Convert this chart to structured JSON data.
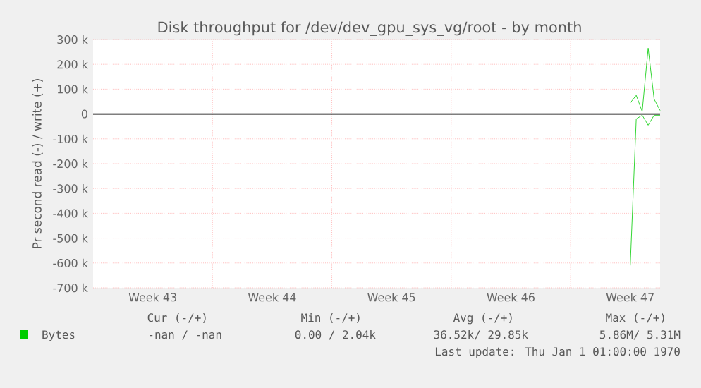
{
  "chart_data": {
    "type": "line",
    "title": "Disk throughput for /dev/dev_gpu_sys_vg/root - by month",
    "ylabel": "Pr second read (-) / write (+)",
    "categories": [
      null,
      null,
      null,
      null,
      null,
      null,
      null,
      null,
      null,
      null,
      "Week 43",
      null,
      null,
      null,
      null,
      null,
      null,
      null,
      null,
      null,
      null,
      null,
      null,
      null,
      null,
      null,
      null,
      null,
      null,
      null,
      "Week 44",
      null,
      null,
      null,
      null,
      null,
      null,
      null,
      null,
      null,
      null,
      null,
      null,
      null,
      null,
      null,
      null,
      null,
      null,
      null,
      "Week 45",
      null,
      null,
      null,
      null,
      null,
      null,
      null,
      null,
      null,
      null,
      null,
      null,
      null,
      null,
      null,
      null,
      null,
      null,
      null,
      "Week 46",
      null,
      null,
      null,
      null,
      null,
      null,
      null,
      null,
      null,
      null,
      null,
      null,
      null,
      null,
      null,
      null,
      null,
      null,
      null,
      "Week 47",
      null,
      null,
      null,
      null,
      null
    ],
    "ylim": [
      -700000,
      300000
    ],
    "yticks": [
      {
        "value": -700000,
        "label": "-700 k"
      },
      {
        "value": -600000,
        "label": "-600 k"
      },
      {
        "value": -500000,
        "label": "-500 k"
      },
      {
        "value": -400000,
        "label": "-400 k"
      },
      {
        "value": -300000,
        "label": "-300 k"
      },
      {
        "value": -200000,
        "label": "-200 k"
      },
      {
        "value": -100000,
        "label": "-100 k"
      },
      0,
      {
        "value": 100000,
        "label": "100 k"
      },
      {
        "value": 200000,
        "label": "200 k"
      },
      {
        "value": 300000,
        "label": "300 k"
      }
    ],
    "grid": true,
    "legend": "bottom",
    "series": [
      {
        "name": "Bytes",
        "color": "#00cc00",
        "values": [
          null,
          null,
          null,
          null,
          null,
          null,
          null,
          null,
          null,
          null,
          null,
          null,
          null,
          null,
          null,
          null,
          null,
          null,
          null,
          null,
          null,
          null,
          null,
          null,
          null,
          null,
          null,
          null,
          null,
          null,
          null,
          null,
          null,
          null,
          null,
          null,
          null,
          null,
          null,
          null,
          null,
          null,
          null,
          null,
          null,
          null,
          null,
          null,
          null,
          null,
          null,
          null,
          null,
          null,
          null,
          null,
          null,
          null,
          null,
          null,
          null,
          null,
          null,
          null,
          null,
          null,
          null,
          null,
          null,
          null,
          null,
          null,
          null,
          null,
          null,
          null,
          null,
          null,
          null,
          null,
          null,
          null,
          null,
          null,
          null,
          null,
          null,
          null,
          null,
          null,
          45000,
          75000,
          10000,
          265000,
          60000,
          14000
        ]
      },
      {
        "color": "#00cc00",
        "values": [
          null,
          null,
          null,
          null,
          null,
          null,
          null,
          null,
          null,
          null,
          null,
          null,
          null,
          null,
          null,
          null,
          null,
          null,
          null,
          null,
          null,
          null,
          null,
          null,
          null,
          null,
          null,
          null,
          null,
          null,
          null,
          null,
          null,
          null,
          null,
          null,
          null,
          null,
          null,
          null,
          null,
          null,
          null,
          null,
          null,
          null,
          null,
          null,
          null,
          null,
          null,
          null,
          null,
          null,
          null,
          null,
          null,
          null,
          null,
          null,
          null,
          null,
          null,
          null,
          null,
          null,
          null,
          null,
          null,
          null,
          null,
          null,
          null,
          null,
          null,
          null,
          null,
          null,
          null,
          null,
          null,
          null,
          null,
          null,
          null,
          null,
          null,
          null,
          null,
          null,
          -610000,
          -20000,
          -5000,
          -45000,
          -5000,
          -5000
        ]
      }
    ],
    "ref_lines": [
      {
        "axis": "y",
        "value": 0,
        "color": "#000000"
      }
    ],
    "annotations": [
      "Cur (-/+)",
      "Min (-/+)",
      "Avg (-/+)",
      "Max (-/+)",
      "-nan /  -nan",
      "0.00 /  2.04k",
      "36.52k/ 29.85k",
      "5.86M/  5.31M",
      "Last update: Thu Jan  1 01:00:00 1970"
    ]
  }
}
